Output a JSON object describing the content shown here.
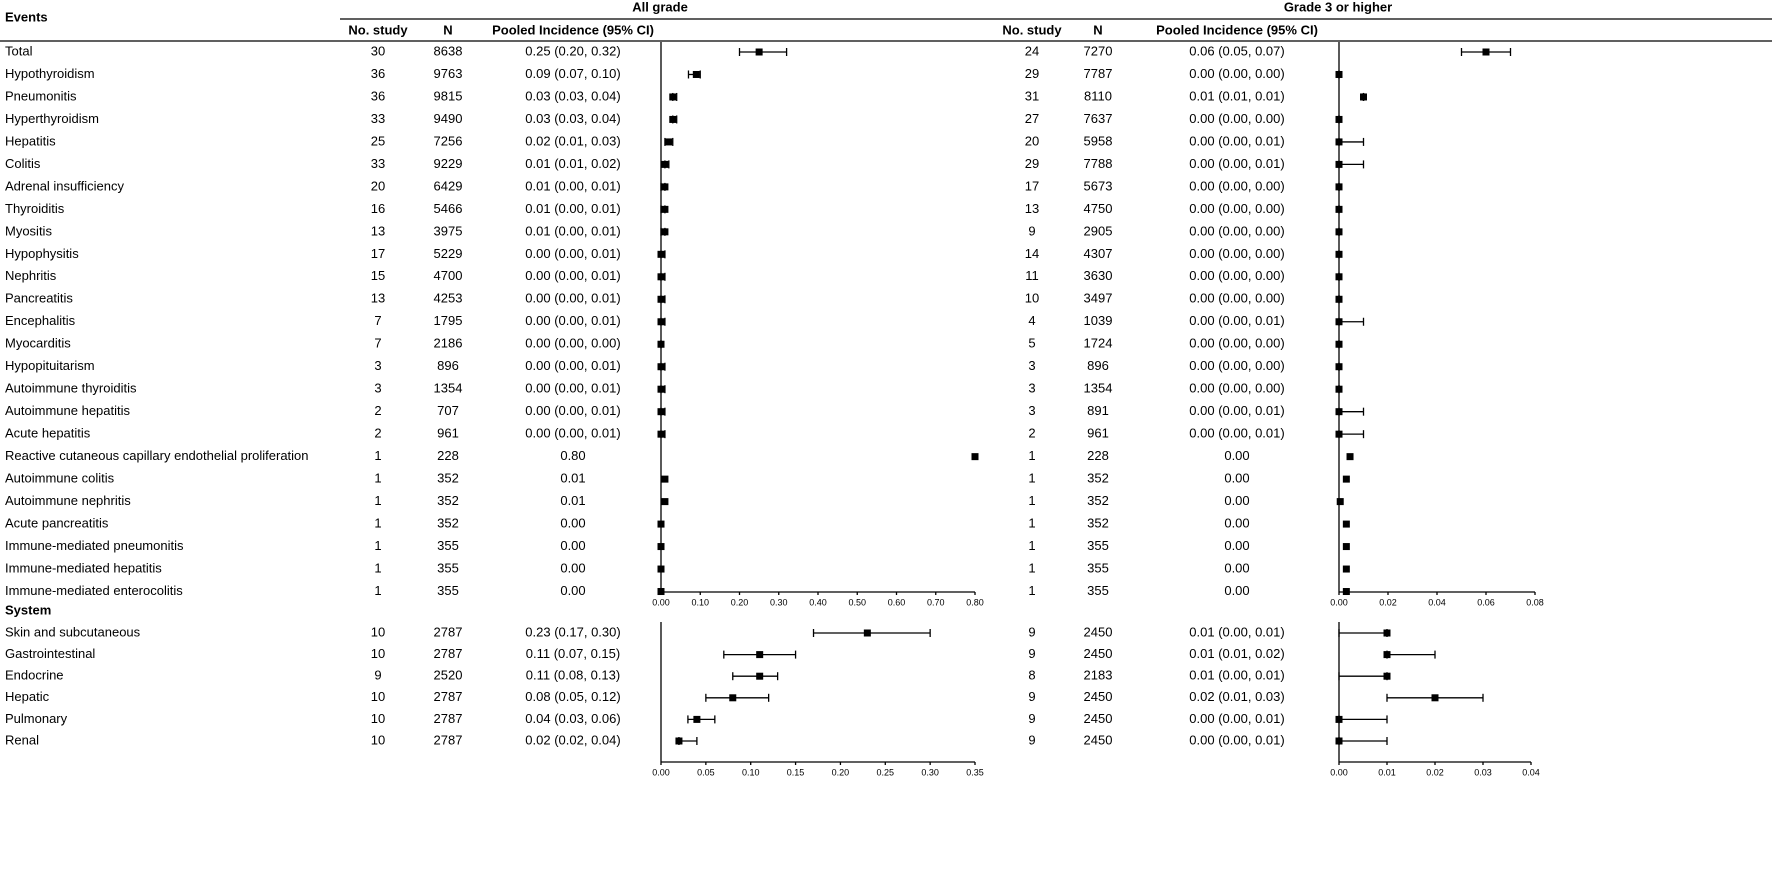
{
  "chart_data": [
    {
      "type": "forest",
      "title": "Events",
      "groups": [
        "All grade",
        "Grade 3 or higher"
      ],
      "columns": [
        "No. study",
        "N",
        "Pooled Incidence (95% CI)"
      ],
      "panels": [
        {
          "xlim": [
            0,
            0.8
          ],
          "xticks": [
            {
              "value": 0,
              "label": "0.00"
            },
            {
              "value": 0.1,
              "label": "0.10"
            },
            {
              "value": 0.2,
              "label": "0.20"
            },
            {
              "value": 0.3,
              "label": "0.30"
            },
            {
              "value": 0.4,
              "label": "0.40"
            },
            {
              "value": 0.5,
              "label": "0.50"
            },
            {
              "value": 0.6,
              "label": "0.60"
            },
            {
              "value": 0.7,
              "label": "0.70"
            },
            {
              "value": 0.8,
              "label": "0.80"
            }
          ]
        },
        {
          "xlim": [
            0,
            0.08
          ],
          "xticks": [
            {
              "value": 0,
              "label": "0.00"
            },
            {
              "value": 0.02,
              "label": "0.02"
            },
            {
              "value": 0.04,
              "label": "0.04"
            },
            {
              "value": 0.06,
              "label": "0.06"
            },
            {
              "value": 0.08,
              "label": "0.08"
            }
          ]
        }
      ],
      "rows": [
        {
          "label": "Total",
          "all": {
            "studies": 30,
            "n": 8638,
            "values": [
              0.25,
              0.2,
              0.32
            ],
            "value_label": "0.25 (0.20, 0.32)"
          },
          "g3": {
            "studies": 24,
            "n": 7270,
            "values": [
              0.06,
              0.05,
              0.07
            ],
            "value_label": "0.06 (0.05, 0.07)"
          }
        },
        {
          "label": "Hypothyroidism",
          "all": {
            "studies": 36,
            "n": 9763,
            "values": [
              0.09,
              0.07,
              0.1
            ],
            "value_label": "0.09 (0.07, 0.10)"
          },
          "g3": {
            "studies": 29,
            "n": 7787,
            "values": [
              0,
              0,
              0
            ],
            "value_label": "0.00 (0.00, 0.00)"
          }
        },
        {
          "label": "Pneumonitis",
          "all": {
            "studies": 36,
            "n": 9815,
            "values": [
              0.03,
              0.03,
              0.04
            ],
            "value_label": "0.03 (0.03, 0.04)"
          },
          "g3": {
            "studies": 31,
            "n": 8110,
            "values": [
              0.01,
              0.01,
              0.01
            ],
            "value_label": "0.01 (0.01, 0.01)"
          }
        },
        {
          "label": "Hyperthyroidism",
          "all": {
            "studies": 33,
            "n": 9490,
            "values": [
              0.03,
              0.03,
              0.04
            ],
            "value_label": "0.03 (0.03, 0.04)"
          },
          "g3": {
            "studies": 27,
            "n": 7637,
            "values": [
              0,
              0,
              0
            ],
            "value_label": "0.00 (0.00, 0.00)"
          }
        },
        {
          "label": "Hepatitis",
          "all": {
            "studies": 25,
            "n": 7256,
            "values": [
              0.02,
              0.01,
              0.03
            ],
            "value_label": "0.02 (0.01, 0.03)"
          },
          "g3": {
            "studies": 20,
            "n": 5958,
            "values": [
              0,
              0,
              0.01
            ],
            "value_label": "0.00 (0.00, 0.01)"
          }
        },
        {
          "label": "Colitis",
          "all": {
            "studies": 33,
            "n": 9229,
            "values": [
              0.01,
              0.01,
              0.02
            ],
            "value_label": "0.01 (0.01, 0.02)"
          },
          "g3": {
            "studies": 29,
            "n": 7788,
            "values": [
              0,
              0,
              0.01
            ],
            "value_label": "0.00 (0.00, 0.01)"
          }
        },
        {
          "label": "Adrenal insufficiency",
          "all": {
            "studies": 20,
            "n": 6429,
            "values": [
              0.01,
              0,
              0.01
            ],
            "value_label": "0.01 (0.00, 0.01)"
          },
          "g3": {
            "studies": 17,
            "n": 5673,
            "values": [
              0,
              0,
              0
            ],
            "value_label": "0.00 (0.00, 0.00)"
          }
        },
        {
          "label": "Thyroiditis",
          "all": {
            "studies": 16,
            "n": 5466,
            "values": [
              0.01,
              0,
              0.01
            ],
            "value_label": "0.01 (0.00, 0.01)"
          },
          "g3": {
            "studies": 13,
            "n": 4750,
            "values": [
              0,
              0,
              0
            ],
            "value_label": "0.00 (0.00, 0.00)"
          }
        },
        {
          "label": "Myositis",
          "all": {
            "studies": 13,
            "n": 3975,
            "values": [
              0.01,
              0,
              0.01
            ],
            "value_label": "0.01 (0.00, 0.01)"
          },
          "g3": {
            "studies": 9,
            "n": 2905,
            "values": [
              0,
              0,
              0
            ],
            "value_label": "0.00 (0.00, 0.00)"
          }
        },
        {
          "label": "Hypophysitis",
          "all": {
            "studies": 17,
            "n": 5229,
            "values": [
              0,
              0,
              0.01
            ],
            "value_label": "0.00 (0.00, 0.01)"
          },
          "g3": {
            "studies": 14,
            "n": 4307,
            "values": [
              0,
              0,
              0
            ],
            "value_label": "0.00 (0.00, 0.00)"
          }
        },
        {
          "label": "Nephritis",
          "all": {
            "studies": 15,
            "n": 4700,
            "values": [
              0,
              0,
              0.01
            ],
            "value_label": "0.00 (0.00, 0.01)"
          },
          "g3": {
            "studies": 11,
            "n": 3630,
            "values": [
              0,
              0,
              0
            ],
            "value_label": "0.00 (0.00, 0.00)"
          }
        },
        {
          "label": "Pancreatitis",
          "all": {
            "studies": 13,
            "n": 4253,
            "values": [
              0,
              0,
              0.01
            ],
            "value_label": "0.00 (0.00, 0.01)"
          },
          "g3": {
            "studies": 10,
            "n": 3497,
            "values": [
              0,
              0,
              0
            ],
            "value_label": "0.00 (0.00, 0.00)"
          }
        },
        {
          "label": "Encephalitis",
          "all": {
            "studies": 7,
            "n": 1795,
            "values": [
              0,
              0,
              0.01
            ],
            "value_label": "0.00 (0.00, 0.01)"
          },
          "g3": {
            "studies": 4,
            "n": 1039,
            "values": [
              0,
              0,
              0.01
            ],
            "value_label": "0.00 (0.00, 0.01)"
          }
        },
        {
          "label": "Myocarditis",
          "all": {
            "studies": 7,
            "n": 2186,
            "values": [
              0,
              0,
              0
            ],
            "value_label": "0.00 (0.00, 0.00)"
          },
          "g3": {
            "studies": 5,
            "n": 1724,
            "values": [
              0,
              0,
              0
            ],
            "value_label": "0.00 (0.00, 0.00)"
          }
        },
        {
          "label": "Hypopituitarism",
          "all": {
            "studies": 3,
            "n": 896,
            "values": [
              0,
              0,
              0.01
            ],
            "value_label": "0.00 (0.00, 0.01)"
          },
          "g3": {
            "studies": 3,
            "n": 896,
            "values": [
              0,
              0,
              0
            ],
            "value_label": "0.00 (0.00, 0.00)"
          }
        },
        {
          "label": "Autoimmune thyroiditis",
          "all": {
            "studies": 3,
            "n": 1354,
            "values": [
              0,
              0,
              0.01
            ],
            "value_label": "0.00 (0.00, 0.01)"
          },
          "g3": {
            "studies": 3,
            "n": 1354,
            "values": [
              0,
              0,
              0
            ],
            "value_label": "0.00 (0.00, 0.00)"
          }
        },
        {
          "label": "Autoimmune hepatitis",
          "all": {
            "studies": 2,
            "n": 707,
            "values": [
              0,
              0,
              0.01
            ],
            "value_label": "0.00 (0.00, 0.01)"
          },
          "g3": {
            "studies": 3,
            "n": 891,
            "values": [
              0,
              0,
              0.01
            ],
            "value_label": "0.00 (0.00, 0.01)"
          }
        },
        {
          "label": "Acute hepatitis",
          "all": {
            "studies": 2,
            "n": 961,
            "values": [
              0,
              0,
              0.01
            ],
            "value_label": "0.00 (0.00, 0.01)"
          },
          "g3": {
            "studies": 2,
            "n": 961,
            "values": [
              0,
              0,
              0.01
            ],
            "value_label": "0.00 (0.00, 0.01)"
          }
        },
        {
          "label": "Reactive cutaneous capillary endothelial proliferation",
          "all": {
            "studies": 1,
            "n": 228,
            "values": [
              0.8
            ],
            "value_label": "0.80"
          },
          "g3": {
            "studies": 1,
            "n": 228,
            "values": [
              0.0045
            ],
            "value_label": "0.00"
          }
        },
        {
          "label": "Autoimmune colitis",
          "all": {
            "studies": 1,
            "n": 352,
            "values": [
              0.01
            ],
            "value_label": "0.01"
          },
          "g3": {
            "studies": 1,
            "n": 352,
            "values": [
              0.003
            ],
            "value_label": "0.00"
          }
        },
        {
          "label": "Autoimmune nephritis",
          "all": {
            "studies": 1,
            "n": 352,
            "values": [
              0.01
            ],
            "value_label": "0.01"
          },
          "g3": {
            "studies": 1,
            "n": 352,
            "values": [
              0.0005
            ],
            "value_label": "0.00"
          }
        },
        {
          "label": "Acute pancreatitis",
          "all": {
            "studies": 1,
            "n": 352,
            "values": [
              0
            ],
            "value_label": "0.00"
          },
          "g3": {
            "studies": 1,
            "n": 352,
            "values": [
              0.003
            ],
            "value_label": "0.00"
          }
        },
        {
          "label": "Immune-mediated pneumonitis",
          "all": {
            "studies": 1,
            "n": 355,
            "values": [
              0
            ],
            "value_label": "0.00"
          },
          "g3": {
            "studies": 1,
            "n": 355,
            "values": [
              0.003
            ],
            "value_label": "0.00"
          }
        },
        {
          "label": "Immune-mediated hepatitis",
          "all": {
            "studies": 1,
            "n": 355,
            "values": [
              0
            ],
            "value_label": "0.00"
          },
          "g3": {
            "studies": 1,
            "n": 355,
            "values": [
              0.003
            ],
            "value_label": "0.00"
          }
        },
        {
          "label": "Immune-mediated enterocolitis",
          "all": {
            "studies": 1,
            "n": 355,
            "values": [
              0
            ],
            "value_label": "0.00"
          },
          "g3": {
            "studies": 1,
            "n": 355,
            "values": [
              0.003
            ],
            "value_label": "0.00"
          }
        }
      ]
    },
    {
      "type": "forest",
      "title": "System",
      "panels": [
        {
          "xlim": [
            0,
            0.35
          ],
          "xticks": [
            {
              "value": 0,
              "label": "0.00"
            },
            {
              "value": 0.05,
              "label": "0.05"
            },
            {
              "value": 0.1,
              "label": "0.10"
            },
            {
              "value": 0.15,
              "label": "0.15"
            },
            {
              "value": 0.2,
              "label": "0.20"
            },
            {
              "value": 0.25,
              "label": "0.25"
            },
            {
              "value": 0.3,
              "label": "0.30"
            },
            {
              "value": 0.35,
              "label": "0.35"
            }
          ]
        },
        {
          "xlim": [
            0,
            0.04
          ],
          "xticks": [
            {
              "value": 0,
              "label": "0.00"
            },
            {
              "value": 0.01,
              "label": "0.01"
            },
            {
              "value": 0.02,
              "label": "0.02"
            },
            {
              "value": 0.03,
              "label": "0.03"
            },
            {
              "value": 0.04,
              "label": "0.04"
            }
          ]
        }
      ],
      "rows": [
        {
          "label": "Skin and subcutaneous",
          "all": {
            "studies": 10,
            "n": 2787,
            "values": [
              0.23,
              0.17,
              0.3
            ],
            "value_label": "0.23 (0.17, 0.30)"
          },
          "g3": {
            "studies": 9,
            "n": 2450,
            "values": [
              0.01,
              0,
              0.01
            ],
            "value_label": "0.01 (0.00, 0.01)"
          }
        },
        {
          "label": "Gastrointestinal",
          "all": {
            "studies": 10,
            "n": 2787,
            "values": [
              0.11,
              0.07,
              0.15
            ],
            "value_label": "0.11 (0.07, 0.15)"
          },
          "g3": {
            "studies": 9,
            "n": 2450,
            "values": [
              0.01,
              0.01,
              0.02
            ],
            "value_label": "0.01 (0.01, 0.02)"
          }
        },
        {
          "label": "Endocrine",
          "all": {
            "studies": 9,
            "n": 2520,
            "values": [
              0.11,
              0.08,
              0.13
            ],
            "value_label": "0.11 (0.08, 0.13)"
          },
          "g3": {
            "studies": 8,
            "n": 2183,
            "values": [
              0.01,
              0,
              0.01
            ],
            "value_label": "0.01 (0.00, 0.01)"
          }
        },
        {
          "label": "Hepatic",
          "all": {
            "studies": 10,
            "n": 2787,
            "values": [
              0.08,
              0.05,
              0.12
            ],
            "value_label": "0.08 (0.05, 0.12)"
          },
          "g3": {
            "studies": 9,
            "n": 2450,
            "values": [
              0.02,
              0.01,
              0.03
            ],
            "value_label": "0.02 (0.01, 0.03)"
          }
        },
        {
          "label": "Pulmonary",
          "all": {
            "studies": 10,
            "n": 2787,
            "values": [
              0.04,
              0.03,
              0.06
            ],
            "value_label": "0.04 (0.03, 0.06)"
          },
          "g3": {
            "studies": 9,
            "n": 2450,
            "values": [
              0,
              0,
              0.01
            ],
            "value_label": "0.00 (0.00, 0.01)"
          }
        },
        {
          "label": "Renal",
          "all": {
            "studies": 10,
            "n": 2787,
            "values": [
              0.02,
              0.02,
              0.04
            ],
            "value_label": "0.02 (0.02, 0.04)"
          },
          "g3": {
            "studies": 9,
            "n": 2450,
            "values": [
              0,
              0,
              0.01
            ],
            "value_label": "0.00 (0.00, 0.01)"
          }
        }
      ]
    }
  ]
}
